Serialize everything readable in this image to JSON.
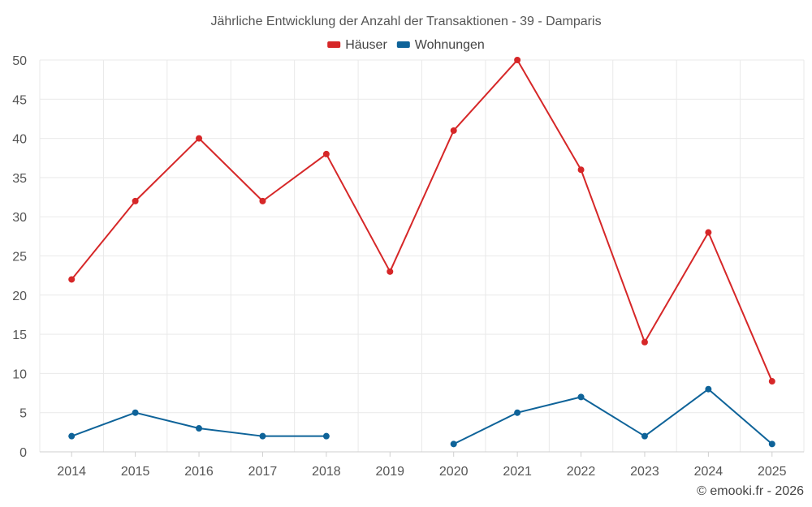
{
  "chart_data": {
    "type": "line",
    "title": "Jährliche Entwicklung der Anzahl der Transaktionen - 39 - Damparis",
    "xlabel": "",
    "ylabel": "",
    "categories": [
      "2014",
      "2015",
      "2016",
      "2017",
      "2018",
      "2019",
      "2020",
      "2021",
      "2022",
      "2023",
      "2024",
      "2025"
    ],
    "ylim": [
      0,
      50
    ],
    "yticks": [
      0,
      5,
      10,
      15,
      20,
      25,
      30,
      35,
      40,
      45,
      50
    ],
    "grid": true,
    "legend_position": "top-center",
    "series": [
      {
        "name": "Häuser",
        "color": "#d62728",
        "values": [
          22,
          32,
          40,
          32,
          38,
          23,
          41,
          50,
          36,
          14,
          28,
          9
        ]
      },
      {
        "name": "Wohnungen",
        "color": "#0e6399",
        "values": [
          2,
          5,
          3,
          2,
          2,
          null,
          1,
          5,
          7,
          2,
          8,
          1
        ]
      }
    ]
  },
  "credit": "© emooki.fr - 2026"
}
